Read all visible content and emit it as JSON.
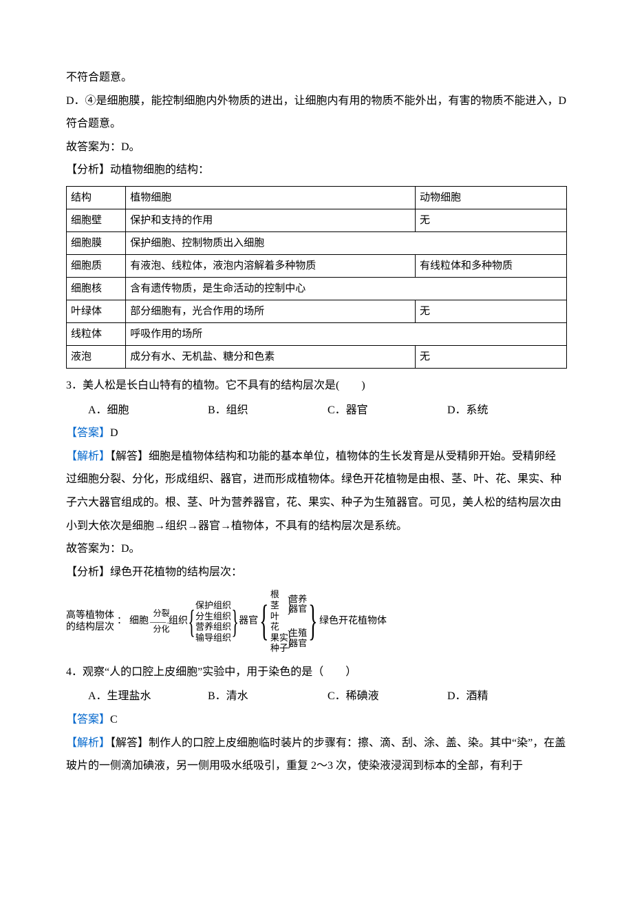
{
  "q2": {
    "cont1": "不符合题意。",
    "optD": "D．④是细胞膜，能控制细胞内外物质的进出，让细胞内有用的物质不能外出，有害的物质不能进入，D 符合题意。",
    "conclusion": "故答案为：D。",
    "analysis_intro": "【分析】动植物细胞的结构：",
    "table": {
      "header": [
        "结构",
        "植物细胞",
        "动物细胞"
      ],
      "rows": [
        {
          "c0": "细胞壁",
          "c1": "保护和支持的作用",
          "c2": "无",
          "span": false
        },
        {
          "c0": "细胞膜",
          "c1": "保护细胞、控制物质出入细胞",
          "c2": "",
          "span": true
        },
        {
          "c0": "细胞质",
          "c1": "有液泡、线粒体，液泡内溶解着多种物质",
          "c2": "有线粒体和多种物质",
          "span": false
        },
        {
          "c0": "细胞核",
          "c1": "含有遗传物质，是生命活动的控制中心",
          "c2": "",
          "span": true
        },
        {
          "c0": "叶绿体",
          "c1": "部分细胞有，光合作用的场所",
          "c2": "无",
          "span": false
        },
        {
          "c0": "线粒体",
          "c1": "呼吸作用的场所",
          "c2": "",
          "span": true
        },
        {
          "c0": "液泡",
          "c1": "成分有水、无机盐、糖分和色素",
          "c2": "无",
          "span": false
        }
      ]
    }
  },
  "q3": {
    "stem": "3．美人松是长白山特有的植物。它不具有的结构层次是(　　)",
    "opts": {
      "A": "A．细胞",
      "B": "B．组织",
      "C": "C．器官",
      "D": "D．系统"
    },
    "answer_label": "【答案】",
    "answer_value": "D",
    "explain_label": "【解析】",
    "explain_sub": "【解答】",
    "explain_body": "细胞是植物体结构和功能的基本单位，植物体的生长发育是从受精卵开始。受精卵经过细胞分裂、分化，形成组织、器官，进而形成植物体。绿色开花植物是由根、茎、叶、花、果实、种子六大器官组成的。根、茎、叶为营养器官，花、果实、种子为生殖器官。可见，美人松的结构层次由小到大依次是细胞→组织→器官→植物体，不具有的结构层次是系统。",
    "conclusion": "故答案为：D。",
    "analysis_intro": "【分析】绿色开花植物的结构层次：",
    "hierarchy": {
      "title1": "高等植物体",
      "title2": "的结构层次",
      "cell": "细胞",
      "arr_top": "分裂",
      "arr_bot": "分化",
      "tissue_label": "组织",
      "tissues": [
        "保护组织",
        "分生组织",
        "营养组织",
        "输导组织"
      ],
      "organ_label": "器官",
      "organs_nut": [
        "根",
        "茎",
        "叶"
      ],
      "organs_rep": [
        "花",
        "果实",
        "种子"
      ],
      "nut_label1": "营养",
      "nut_label2": "器官",
      "rep_label1": "生殖",
      "rep_label2": "器官",
      "plant_body": "绿色开花植物体"
    }
  },
  "q4": {
    "stem": "4．观察“人的口腔上皮细胞”实验中，用于染色的是（　　）",
    "opts": {
      "A": "A．生理盐水",
      "B": "B．清水",
      "C": "C．稀碘液",
      "D": "D．酒精"
    },
    "answer_label": "【答案】",
    "answer_value": "C",
    "explain_label": "【解析】",
    "explain_sub": "【解答】",
    "explain_body": "制作人的口腔上皮细胞临时装片的步骤有：擦、滴、刮、涂、盖、染。其中“染”，在盖玻片的一侧滴加碘液，另一侧用吸水纸吸引，重复 2～3 次，使染液浸润到标本的全部，有利于"
  }
}
